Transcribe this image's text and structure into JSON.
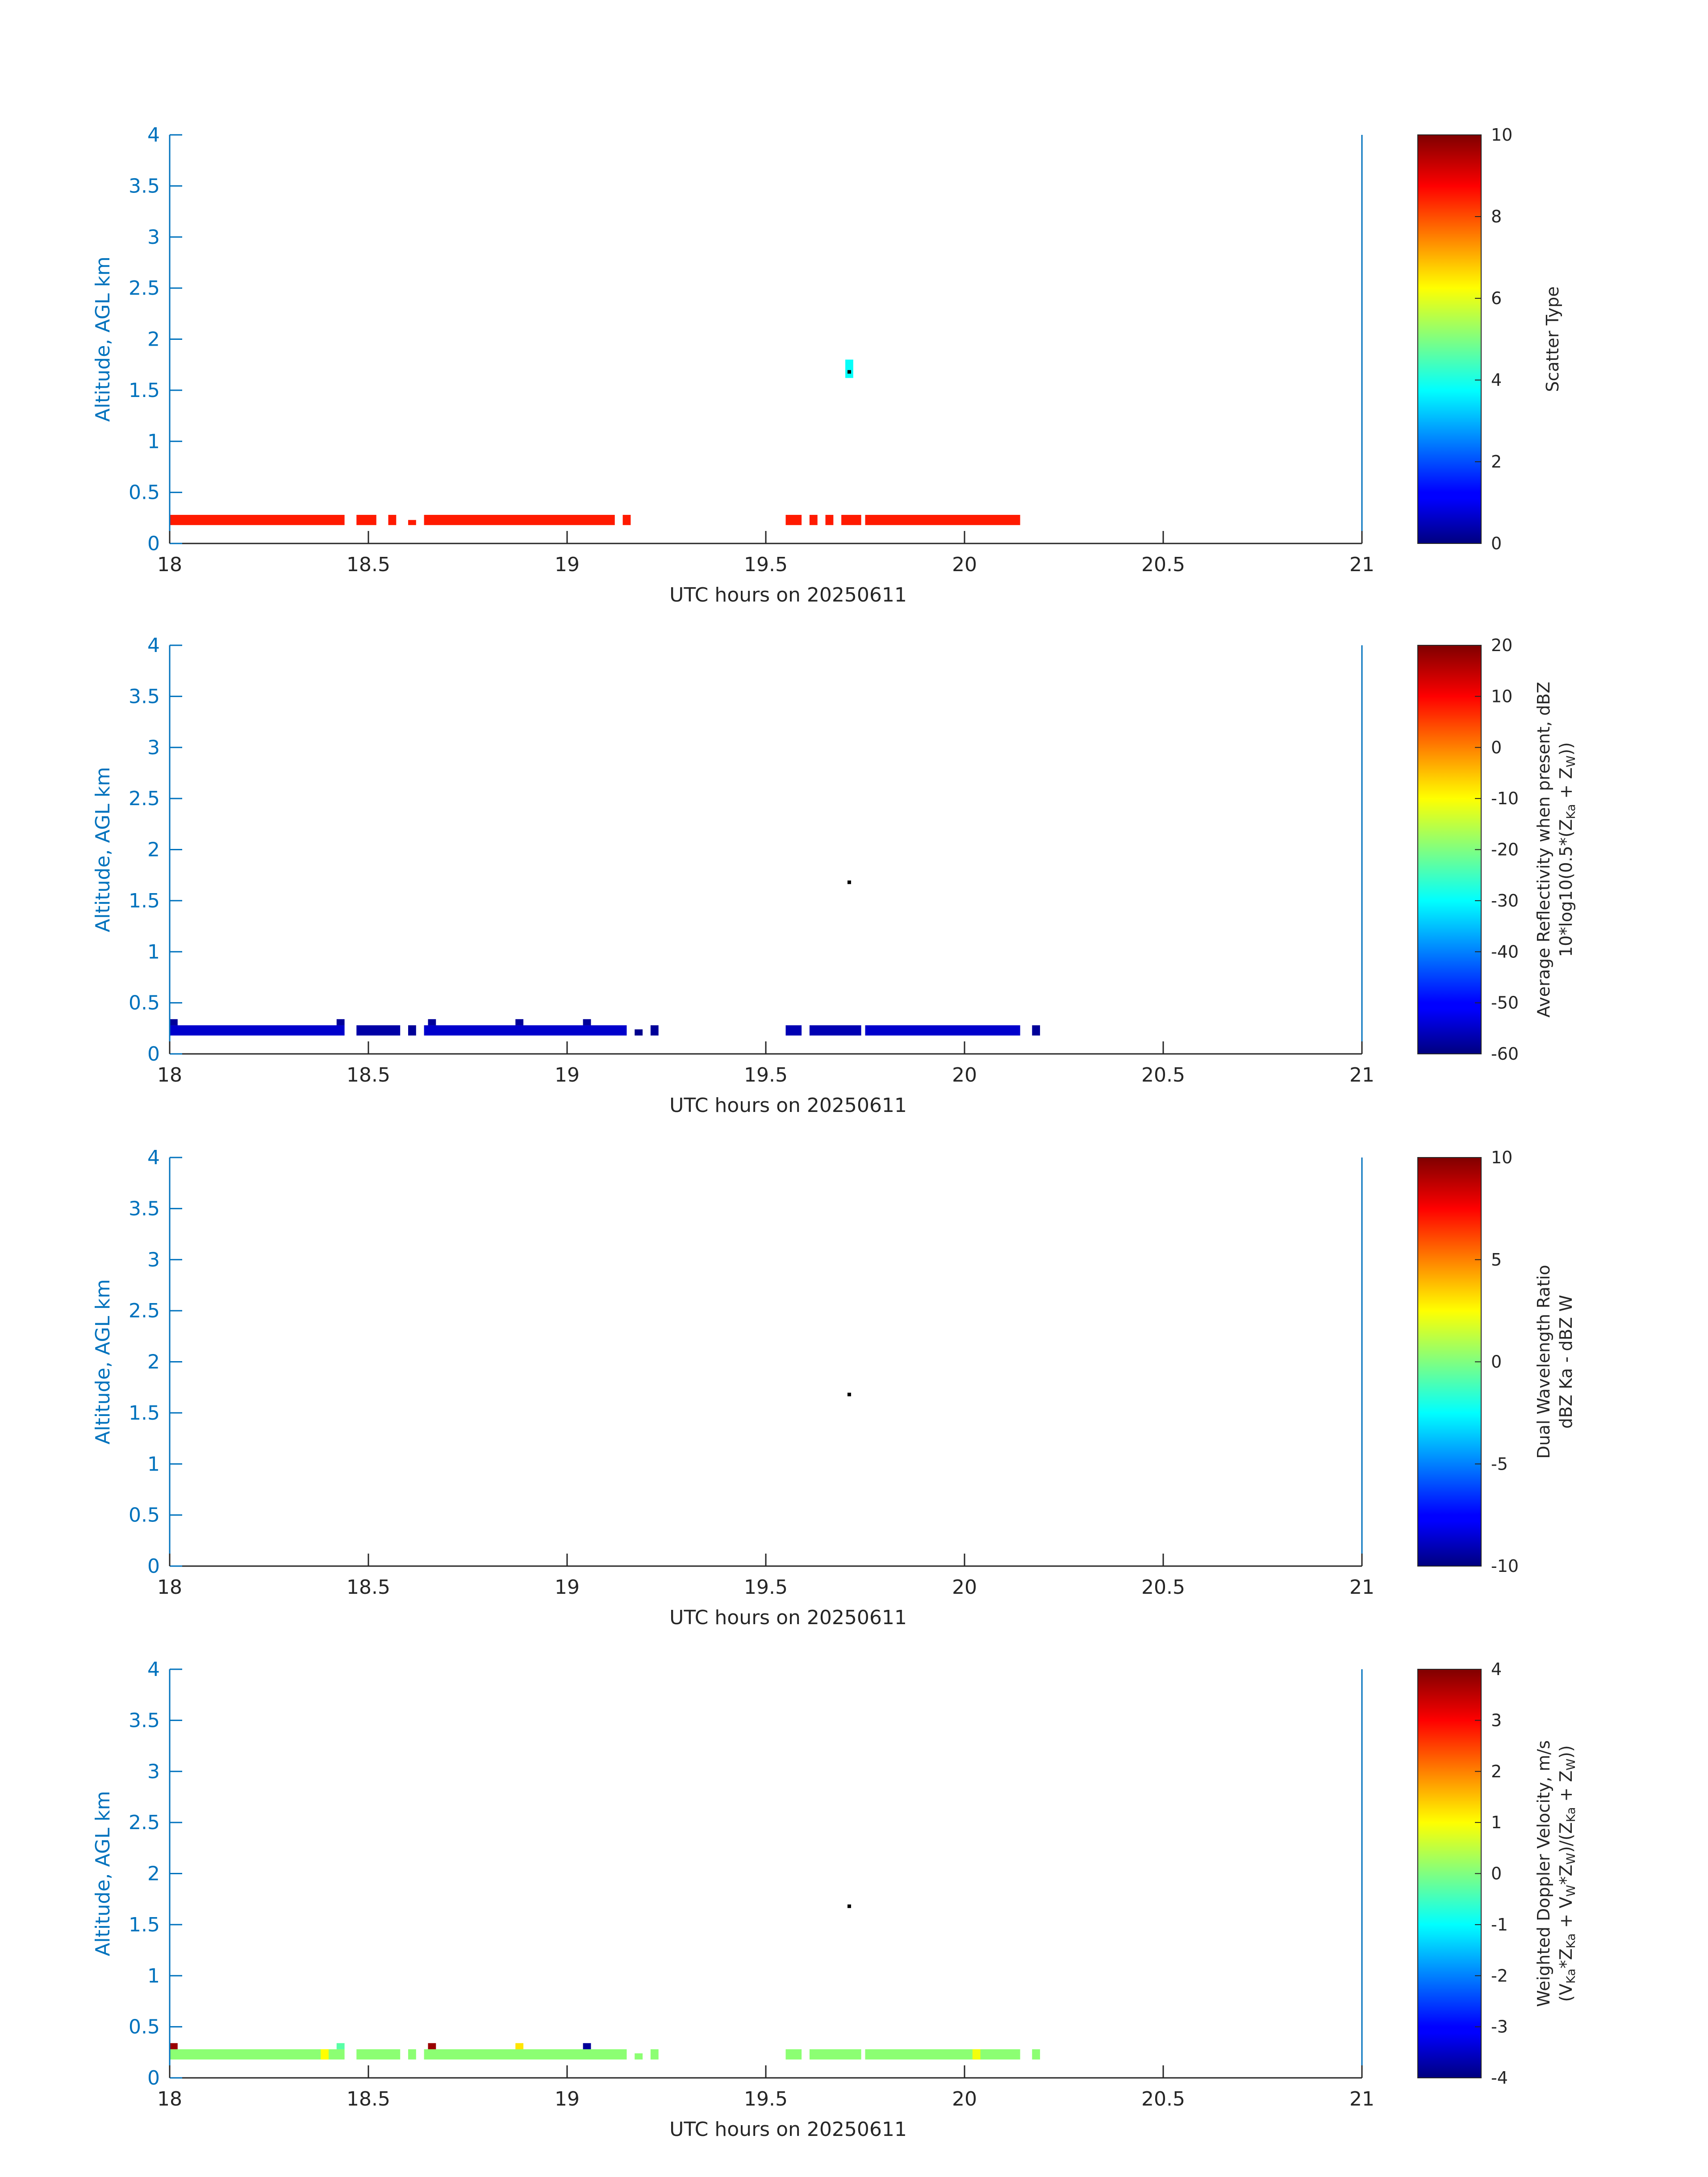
{
  "chart_data": [
    {
      "type": "heatmap",
      "xlabel": "UTC hours on 20250611",
      "ylabel": "Altitude, AGL km",
      "xlim": [
        18,
        21
      ],
      "ylim": [
        0,
        4
      ],
      "x_ticks": [
        "18",
        "18.5",
        "19",
        "19.5",
        "20",
        "20.5",
        "21"
      ],
      "y_ticks": [
        "0",
        "0.5",
        "1",
        "1.5",
        "2",
        "2.5",
        "3",
        "3.5",
        "4"
      ],
      "colorbar": {
        "label": "Scatter Type",
        "label2": "",
        "range": [
          0,
          10
        ],
        "ticks": [
          "0",
          "2",
          "4",
          "6",
          "8",
          "10"
        ],
        "colormap": "jet"
      },
      "spans": [
        {
          "x0": 18.0,
          "x1": 18.44,
          "y0": 0.18,
          "y1": 0.28,
          "value": 8.5
        },
        {
          "x0": 18.47,
          "x1": 18.52,
          "y0": 0.18,
          "y1": 0.28,
          "value": 8.5
        },
        {
          "x0": 18.55,
          "x1": 18.57,
          "y0": 0.18,
          "y1": 0.28,
          "value": 8.5
        },
        {
          "x0": 18.6,
          "x1": 18.62,
          "y0": 0.18,
          "y1": 0.23,
          "value": 8.5
        },
        {
          "x0": 18.64,
          "x1": 19.12,
          "y0": 0.18,
          "y1": 0.28,
          "value": 8.5
        },
        {
          "x0": 19.14,
          "x1": 19.16,
          "y0": 0.18,
          "y1": 0.28,
          "value": 8.5
        },
        {
          "x0": 19.55,
          "x1": 19.59,
          "y0": 0.18,
          "y1": 0.28,
          "value": 8.5
        },
        {
          "x0": 19.61,
          "x1": 19.63,
          "y0": 0.18,
          "y1": 0.28,
          "value": 8.5
        },
        {
          "x0": 19.65,
          "x1": 19.67,
          "y0": 0.18,
          "y1": 0.28,
          "value": 8.5
        },
        {
          "x0": 19.69,
          "x1": 19.74,
          "y0": 0.18,
          "y1": 0.28,
          "value": 8.5
        },
        {
          "x0": 19.75,
          "x1": 20.14,
          "y0": 0.18,
          "y1": 0.28,
          "value": 8.5
        },
        {
          "x0": 19.7,
          "x1": 19.72,
          "y0": 1.62,
          "y1": 1.8,
          "value": 3.8
        }
      ],
      "marker": {
        "x": 19.71,
        "y": 1.68
      }
    },
    {
      "type": "heatmap",
      "xlabel": "UTC hours on 20250611",
      "ylabel": "Altitude, AGL km",
      "xlim": [
        18,
        21
      ],
      "ylim": [
        0,
        4
      ],
      "x_ticks": [
        "18",
        "18.5",
        "19",
        "19.5",
        "20",
        "20.5",
        "21"
      ],
      "y_ticks": [
        "0",
        "0.5",
        "1",
        "1.5",
        "2",
        "2.5",
        "3",
        "3.5",
        "4"
      ],
      "colorbar": {
        "label": "Average Reflectivity when present, dBZ",
        "label2": "10*log10(0.5*(Z_Ka + Z_W))",
        "range": [
          -60,
          20
        ],
        "ticks": [
          "-60",
          "-50",
          "-40",
          "-30",
          "-20",
          "-10",
          "0",
          "10",
          "20"
        ],
        "colormap": "jet"
      },
      "spans": [
        {
          "x0": 18.0,
          "x1": 18.44,
          "y0": 0.18,
          "y1": 0.28,
          "value": -54
        },
        {
          "x0": 18.47,
          "x1": 18.58,
          "y0": 0.18,
          "y1": 0.28,
          "value": -57
        },
        {
          "x0": 18.6,
          "x1": 18.62,
          "y0": 0.18,
          "y1": 0.28,
          "value": -58
        },
        {
          "x0": 18.64,
          "x1": 19.15,
          "y0": 0.18,
          "y1": 0.28,
          "value": -54
        },
        {
          "x0": 19.17,
          "x1": 19.19,
          "y0": 0.18,
          "y1": 0.24,
          "value": -59
        },
        {
          "x0": 19.21,
          "x1": 19.23,
          "y0": 0.18,
          "y1": 0.28,
          "value": -58
        },
        {
          "x0": 19.55,
          "x1": 19.59,
          "y0": 0.18,
          "y1": 0.28,
          "value": -56
        },
        {
          "x0": 19.61,
          "x1": 19.74,
          "y0": 0.18,
          "y1": 0.28,
          "value": -56
        },
        {
          "x0": 19.75,
          "x1": 20.14,
          "y0": 0.18,
          "y1": 0.28,
          "value": -54
        },
        {
          "x0": 20.17,
          "x1": 20.19,
          "y0": 0.18,
          "y1": 0.28,
          "value": -58
        },
        {
          "x0": 18.0,
          "x1": 18.02,
          "y0": 0.28,
          "y1": 0.34,
          "value": -58
        },
        {
          "x0": 18.42,
          "x1": 18.44,
          "y0": 0.28,
          "y1": 0.34,
          "value": -58
        },
        {
          "x0": 18.65,
          "x1": 18.67,
          "y0": 0.28,
          "y1": 0.34,
          "value": -58
        },
        {
          "x0": 18.87,
          "x1": 18.89,
          "y0": 0.28,
          "y1": 0.34,
          "value": -58
        },
        {
          "x0": 19.04,
          "x1": 19.06,
          "y0": 0.28,
          "y1": 0.34,
          "value": -58
        }
      ],
      "marker": {
        "x": 19.71,
        "y": 1.68
      }
    },
    {
      "type": "heatmap",
      "xlabel": "UTC hours on 20250611",
      "ylabel": "Altitude, AGL km",
      "xlim": [
        18,
        21
      ],
      "ylim": [
        0,
        4
      ],
      "x_ticks": [
        "18",
        "18.5",
        "19",
        "19.5",
        "20",
        "20.5",
        "21"
      ],
      "y_ticks": [
        "0",
        "0.5",
        "1",
        "1.5",
        "2",
        "2.5",
        "3",
        "3.5",
        "4"
      ],
      "colorbar": {
        "label": "Dual Wavelength Ratio",
        "label2": "dBZ Ka - dBZ W",
        "range": [
          -10,
          10
        ],
        "ticks": [
          "-10",
          "-5",
          "0",
          "5",
          "10"
        ],
        "colormap": "jet"
      },
      "spans": [],
      "marker": {
        "x": 19.71,
        "y": 1.68
      }
    },
    {
      "type": "heatmap",
      "xlabel": "UTC hours on 20250611",
      "ylabel": "Altitude, AGL km",
      "xlim": [
        18,
        21
      ],
      "ylim": [
        0,
        4
      ],
      "x_ticks": [
        "18",
        "18.5",
        "19",
        "19.5",
        "20",
        "20.5",
        "21"
      ],
      "y_ticks": [
        "0",
        "0.5",
        "1",
        "1.5",
        "2",
        "2.5",
        "3",
        "3.5",
        "4"
      ],
      "colorbar": {
        "label": "Weighted Doppler Velocity, m/s",
        "label2": "(V_Ka*Z_Ka + V_W*Z_W)/(Z_Ka + Z_W))",
        "range": [
          -4,
          4
        ],
        "ticks": [
          "-4",
          "-3",
          "-2",
          "-1",
          "0",
          "1",
          "2",
          "3",
          "4"
        ],
        "colormap": "jet"
      },
      "spans": [
        {
          "x0": 18.0,
          "x1": 18.44,
          "y0": 0.18,
          "y1": 0.28,
          "value": 0.1
        },
        {
          "x0": 18.47,
          "x1": 18.58,
          "y0": 0.18,
          "y1": 0.28,
          "value": 0.1
        },
        {
          "x0": 18.6,
          "x1": 18.62,
          "y0": 0.18,
          "y1": 0.28,
          "value": 0.1
        },
        {
          "x0": 18.64,
          "x1": 19.15,
          "y0": 0.18,
          "y1": 0.28,
          "value": 0.1
        },
        {
          "x0": 19.17,
          "x1": 19.19,
          "y0": 0.18,
          "y1": 0.24,
          "value": 0.1
        },
        {
          "x0": 19.21,
          "x1": 19.23,
          "y0": 0.18,
          "y1": 0.28,
          "value": 0.1
        },
        {
          "x0": 19.55,
          "x1": 19.59,
          "y0": 0.18,
          "y1": 0.28,
          "value": 0.1
        },
        {
          "x0": 19.61,
          "x1": 19.74,
          "y0": 0.18,
          "y1": 0.28,
          "value": 0.1
        },
        {
          "x0": 19.75,
          "x1": 20.14,
          "y0": 0.18,
          "y1": 0.28,
          "value": 0.1
        },
        {
          "x0": 20.17,
          "x1": 20.19,
          "y0": 0.18,
          "y1": 0.28,
          "value": 0.1
        },
        {
          "x0": 18.0,
          "x1": 18.02,
          "y0": 0.28,
          "y1": 0.34,
          "value": 3.8
        },
        {
          "x0": 18.42,
          "x1": 18.44,
          "y0": 0.28,
          "y1": 0.34,
          "value": -0.3
        },
        {
          "x0": 18.65,
          "x1": 18.67,
          "y0": 0.28,
          "y1": 0.34,
          "value": 3.8
        },
        {
          "x0": 18.87,
          "x1": 18.89,
          "y0": 0.28,
          "y1": 0.34,
          "value": 1.2
        },
        {
          "x0": 19.04,
          "x1": 19.06,
          "y0": 0.28,
          "y1": 0.34,
          "value": -3.8
        },
        {
          "x0": 18.38,
          "x1": 18.4,
          "y0": 0.18,
          "y1": 0.28,
          "value": 1.0
        },
        {
          "x0": 20.02,
          "x1": 20.04,
          "y0": 0.18,
          "y1": 0.28,
          "value": 0.9
        }
      ],
      "marker": {
        "x": 19.71,
        "y": 1.68
      }
    }
  ]
}
